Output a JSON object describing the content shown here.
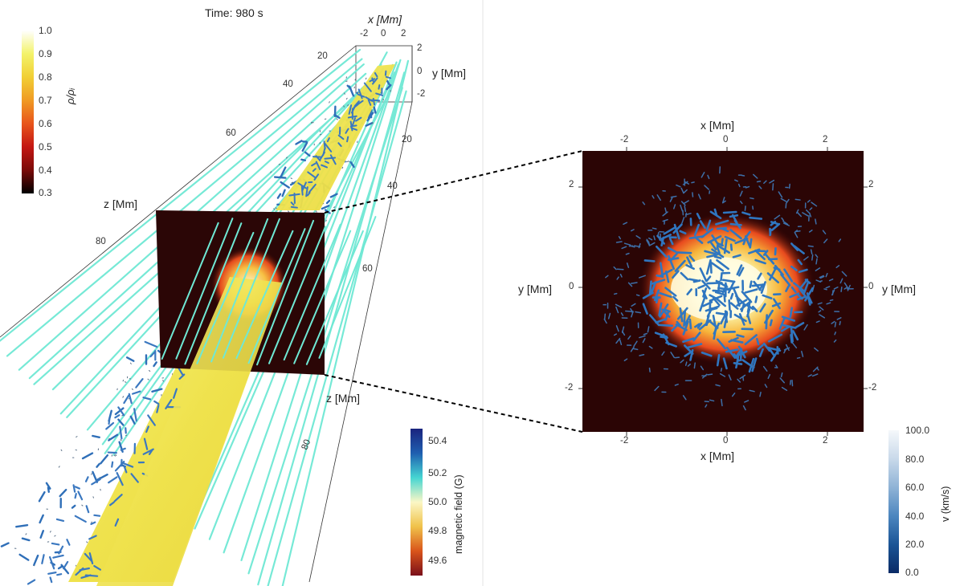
{
  "time_label": "Time: 980 s",
  "colorbars": {
    "density": {
      "label": "ρ/ρᵢ",
      "ticks": [
        "1.0",
        "0.9",
        "0.8",
        "0.7",
        "0.6",
        "0.5",
        "0.4",
        "0.3"
      ],
      "range": [
        0.3,
        1.0
      ],
      "stops": [
        "#ffffff",
        "#f3f36a",
        "#f1cf35",
        "#f09a24",
        "#e8551c",
        "#c41713",
        "#7a0a08",
        "#000000"
      ]
    },
    "magnetic": {
      "label": "magnetic field (G)",
      "ticks": [
        "50.4",
        "50.2",
        "50.0",
        "49.8",
        "49.6"
      ],
      "range": [
        49.55,
        50.45
      ],
      "stops": [
        "#1a237e",
        "#1f5fb0",
        "#45d5d2",
        "#fbf7c6",
        "#f0c24a",
        "#d9541b",
        "#7a0f1a"
      ]
    },
    "velocity": {
      "label": "v (km/s)",
      "ticks": [
        "100.0",
        "80.0",
        "60.0",
        "40.0",
        "20.0",
        "0.0"
      ],
      "range": [
        0,
        100
      ],
      "stops": [
        "#f5f8fb",
        "#c9d9ea",
        "#8fb3d6",
        "#4c86bf",
        "#1b5596",
        "#0a2a66"
      ]
    }
  },
  "view3d": {
    "top_x_axis": {
      "label": "x [Mm]",
      "ticks": [
        "-2",
        "0",
        "2"
      ]
    },
    "top_y_axis": {
      "label": "y [Mm]",
      "ticks": [
        "2",
        "0",
        "-2"
      ]
    },
    "z_axis_left": {
      "label": "z [Mm]",
      "ticks": [
        "20",
        "40",
        "60",
        "80"
      ]
    },
    "z_axis_right": {
      "label": "z [Mm]",
      "ticks": [
        "20",
        "40",
        "60",
        "80"
      ]
    }
  },
  "slice_view": {
    "x_axis_top": {
      "label": "x [Mm]",
      "ticks": [
        "-2",
        "0",
        "2"
      ]
    },
    "x_axis_bottom": {
      "label": "x [Mm]",
      "ticks": [
        "-2",
        "0",
        "2"
      ]
    },
    "y_axis_left": {
      "label": "y [Mm]",
      "ticks": [
        "2",
        "0",
        "-2"
      ]
    },
    "y_axis_right": {
      "label": "y [Mm]",
      "ticks": [
        "2",
        "0",
        "-2"
      ]
    }
  }
}
